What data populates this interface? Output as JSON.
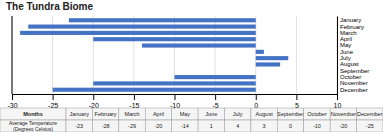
{
  "chart_data": {
    "type": "bar",
    "orientation": "horizontal",
    "title": "The Tundra Biome",
    "categories": [
      "January",
      "February",
      "March",
      "April",
      "May",
      "June",
      "July",
      "August",
      "September",
      "October",
      "November",
      "December"
    ],
    "values": [
      -23,
      -28,
      -29,
      -20,
      -14,
      1,
      4,
      3,
      0,
      -10,
      -20,
      -25
    ],
    "color": "#4472C4",
    "xlim": [
      -30,
      10
    ],
    "xticks": [
      -30,
      -25,
      -20,
      -15,
      -10,
      -5,
      0,
      5,
      10
    ],
    "grid": true,
    "table_row_labels": [
      "Months",
      "Average Temperature(Degrees Celsius)"
    ]
  }
}
